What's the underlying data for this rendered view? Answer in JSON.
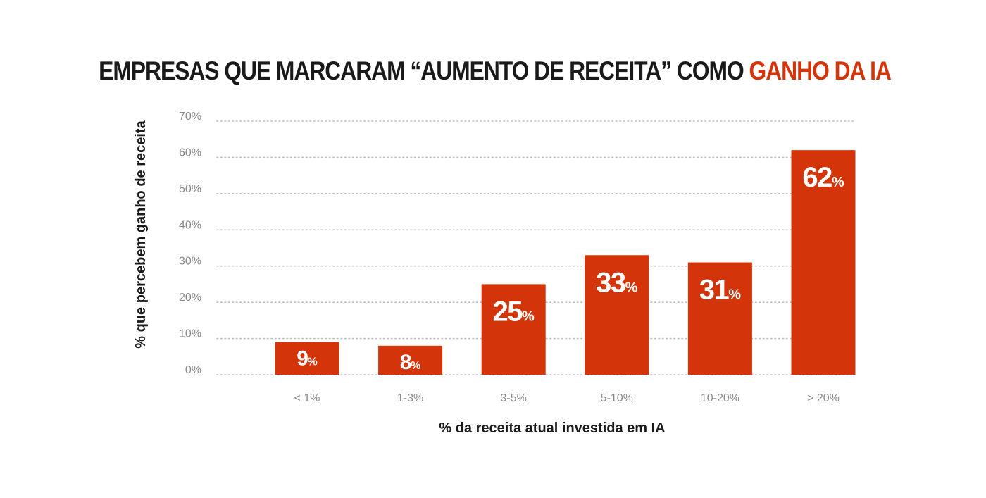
{
  "title": {
    "main": "EMPRESAS QUE MARCARAM “AUMENTO DE RECEITA” COMO",
    "accent": "GANHO DA IA"
  },
  "colors": {
    "bar": "#d3340a",
    "accent": "#d3340a",
    "grid": "#bdbdbd",
    "tick": "#8a8a8a",
    "text": "#1a1a1a"
  },
  "chart_data": {
    "type": "bar",
    "title": "EMPRESAS QUE MARCARAM “AUMENTO DE RECEITA” COMO GANHO DA IA",
    "categories": [
      "< 1%",
      "1-3%",
      "3-5%",
      "5-10%",
      "10-20%",
      "> 20%"
    ],
    "values": [
      9,
      8,
      25,
      33,
      31,
      62
    ],
    "value_labels": [
      "9",
      "8",
      "25",
      "33",
      "31",
      "62"
    ],
    "value_suffix": "%",
    "xlabel": "% da receita atual investida em IA",
    "ylabel": "% que percebem ganho de receita",
    "ylim": [
      0,
      70
    ],
    "yticks": [
      0,
      10,
      20,
      30,
      40,
      50,
      60,
      70
    ],
    "ytick_labels": [
      "0%",
      "10%",
      "20%",
      "30%",
      "40%",
      "50%",
      "60%",
      "70%"
    ],
    "grid": true,
    "grid_style": "dotted",
    "legend": "none"
  }
}
